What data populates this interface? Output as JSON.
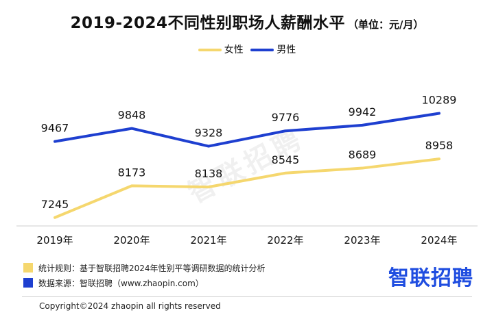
{
  "header": {
    "title": "2019-2024不同性别职场人薪酬水平",
    "unit": "（单位：元/月）"
  },
  "watermark": "智联招聘",
  "notes": [
    {
      "text": "统计规则：基于智联招聘2024年性别平等调研数据的统计分析",
      "color": "#f5d76e"
    },
    {
      "text": "数据来源：智联招聘（www.zhaopin.com）",
      "color": "#1e3fd0"
    }
  ],
  "brand": "智联招聘",
  "copyright": "Copyright©2024 zhaopin all rights reserved",
  "chart_data": {
    "type": "line",
    "title": "2019-2024不同性别职场人薪酬水平",
    "subtitle": "（单位：元/月）",
    "categories": [
      "2019年",
      "2020年",
      "2021年",
      "2022年",
      "2023年",
      "2024年"
    ],
    "series": [
      {
        "name": "女性",
        "color": "#f5d76e",
        "values": [
          7245,
          8173,
          8138,
          8545,
          8689,
          8958
        ]
      },
      {
        "name": "男性",
        "color": "#1e3fd0",
        "values": [
          9467,
          9848,
          9328,
          9776,
          9942,
          10289
        ]
      }
    ],
    "ylim": [
      7000,
      10600
    ],
    "grid": false,
    "legend": "top-center"
  }
}
